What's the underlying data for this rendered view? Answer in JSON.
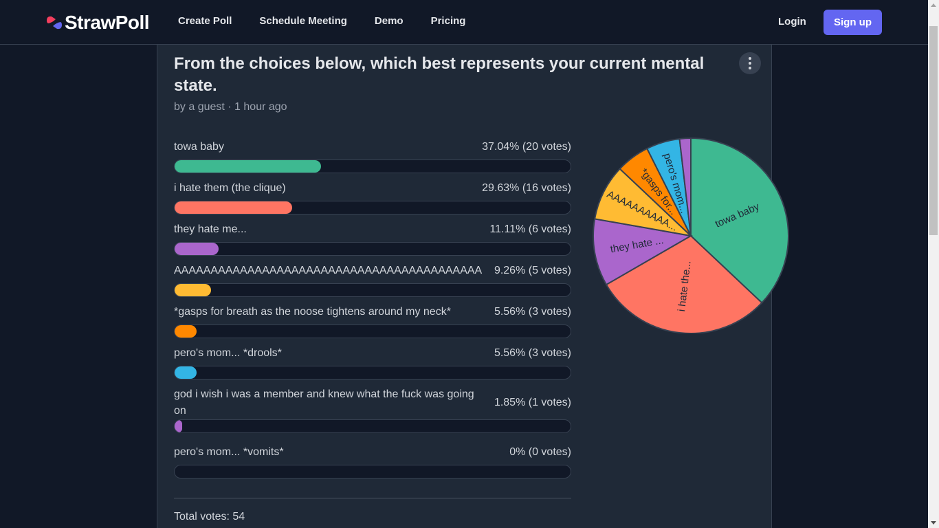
{
  "header": {
    "brand": "StrawPoll",
    "nav": [
      "Create Poll",
      "Schedule Meeting",
      "Demo",
      "Pricing"
    ],
    "login_label": "Login",
    "signup_label": "Sign up",
    "colors": {
      "accent": "#6366f1",
      "logo_red": "#f43f5e",
      "logo_purple": "#6366f1"
    }
  },
  "poll": {
    "title": "From the choices below, which best represents your current mental state.",
    "meta": "by a guest · 1 hour ago",
    "options": [
      {
        "label": "towa baby",
        "result": "37.04% (20 votes)",
        "percent": 37.04,
        "votes": 20,
        "color": "#3eb991",
        "pie_label": "towa baby"
      },
      {
        "label": "i hate them (the clique)",
        "result": "29.63% (16 votes)",
        "percent": 29.63,
        "votes": 16,
        "color": "#ff7563",
        "pie_label": "i hate the..."
      },
      {
        "label": "they hate me...",
        "result": "11.11% (6 votes)",
        "percent": 11.11,
        "votes": 6,
        "color": "#aa66cc",
        "pie_label": "they hate ..."
      },
      {
        "label": "AAAAAAAAAAAAAAAAAAAAAAAAAAAAAAAAAAAAAAAAAA",
        "result": "9.26% (5 votes)",
        "percent": 9.26,
        "votes": 5,
        "color": "#ffbb33",
        "pie_label": "AAAAAAAAAA..."
      },
      {
        "label": "*gasps for breath as the noose tightens around my neck*",
        "result": "5.56% (3 votes)",
        "percent": 5.56,
        "votes": 3,
        "color": "#ff8800",
        "pie_label": "*gasps for..."
      },
      {
        "label": "pero's mom... *drools*",
        "result": "5.56% (3 votes)",
        "percent": 5.56,
        "votes": 3,
        "color": "#33b5e5",
        "pie_label": "pero's mom..."
      },
      {
        "label": "god i wish i was a member and knew what the fuck was going on",
        "result": "1.85% (1 votes)",
        "percent": 1.85,
        "votes": 1,
        "color": "#aa66cc",
        "pie_label": ""
      },
      {
        "label": "pero's mom... *vomits*",
        "result": "0% (0 votes)",
        "percent": 0,
        "votes": 0,
        "color": "#3eb991",
        "pie_label": ""
      }
    ],
    "total": "Total votes: 54"
  }
}
